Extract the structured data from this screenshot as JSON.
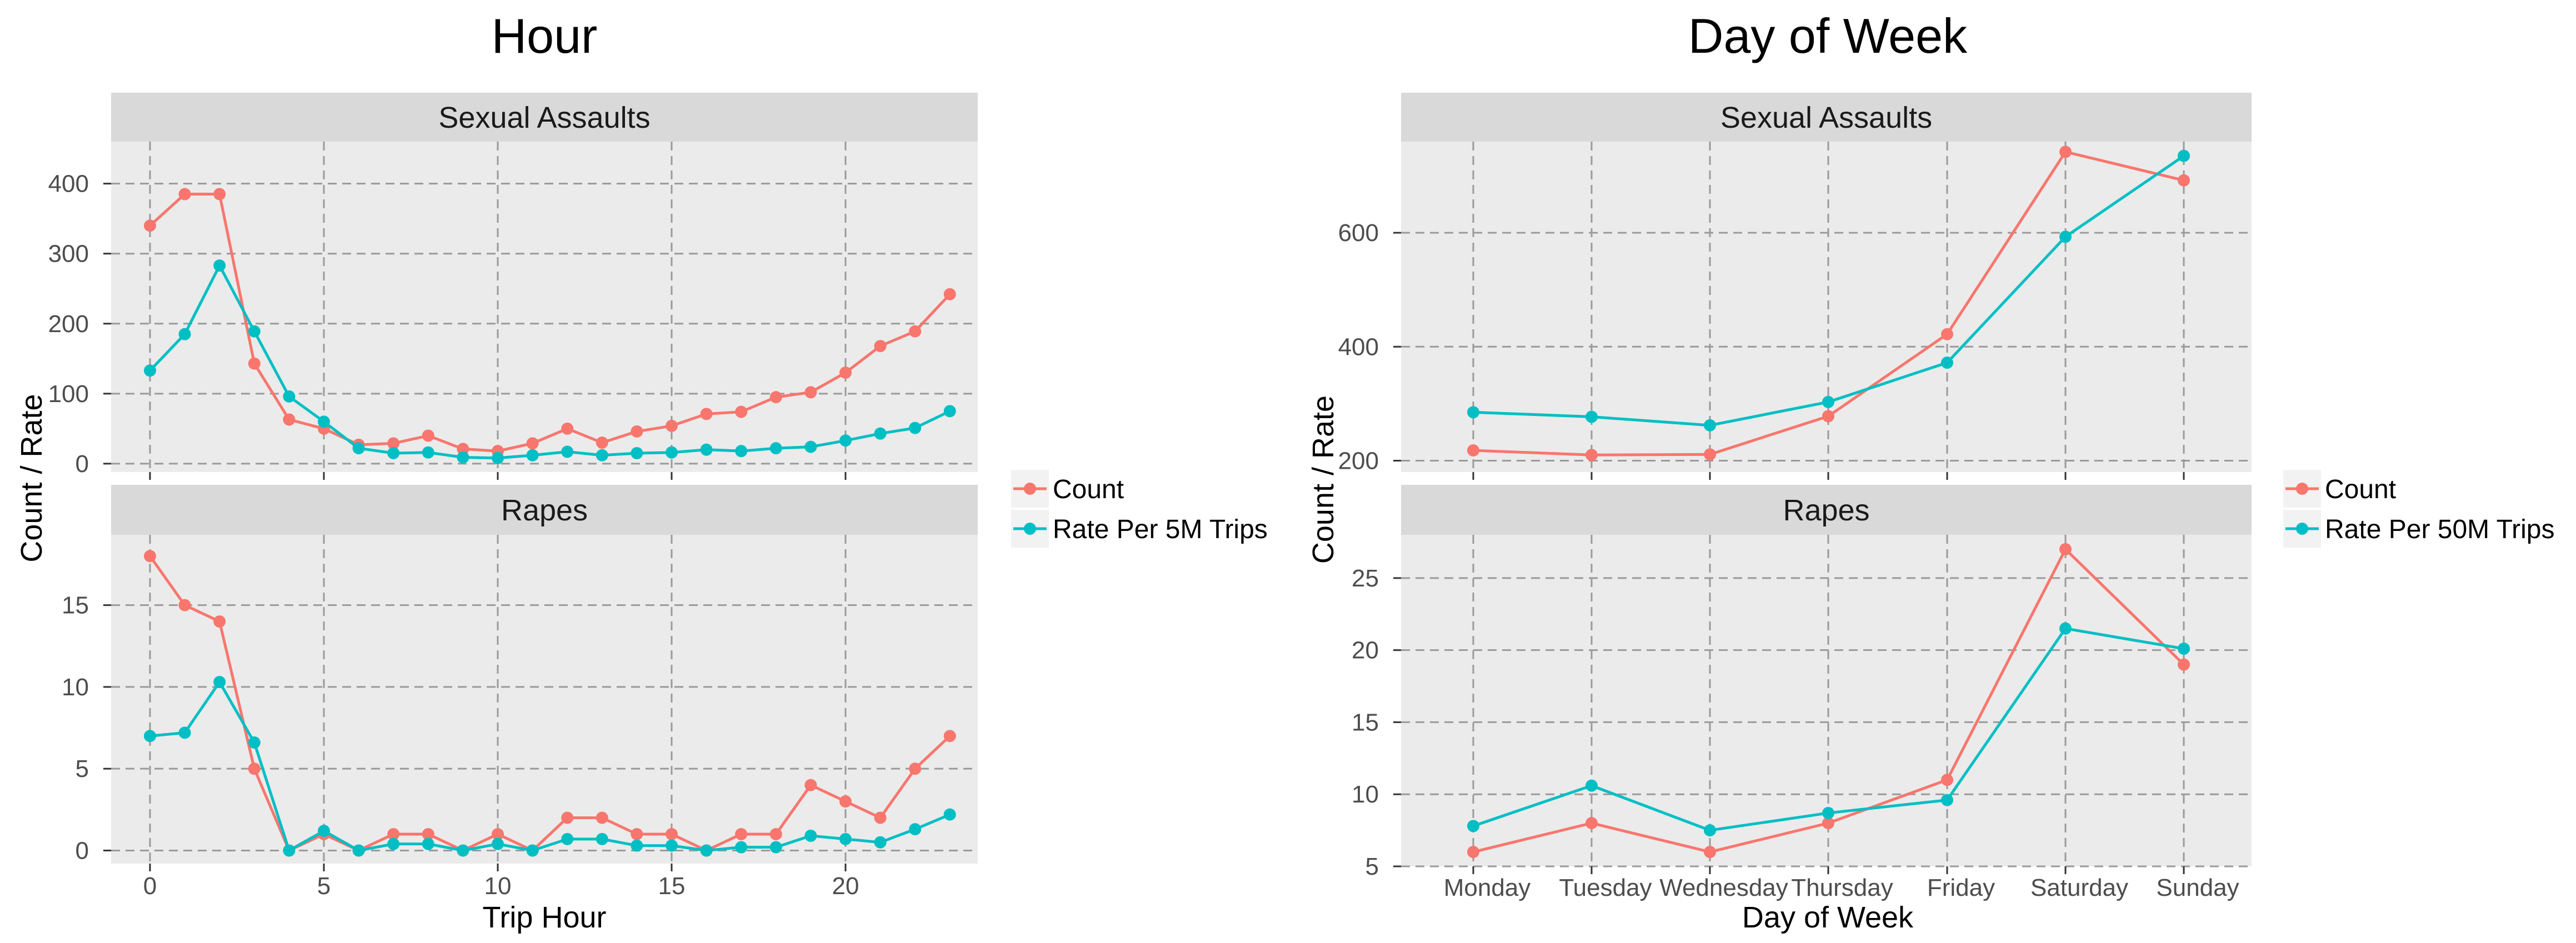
{
  "colors": {
    "count": "#F8766D",
    "rate": "#00BFC4",
    "panel_bg": "#EBEBEB",
    "strip_bg": "#D9D9D9",
    "grid_major": "#9a9a9a",
    "grid_minor": "#ffffff"
  },
  "chart_data": [
    {
      "type": "line",
      "title": "Hour",
      "xlabel": "Trip Hour",
      "ylabel": "Count / Rate",
      "x_ticks": [
        "0",
        "5",
        "10",
        "15",
        "20"
      ],
      "legend": [
        "Count",
        "Rate Per 5M Trips"
      ],
      "x": [
        0,
        1,
        2,
        3,
        4,
        5,
        6,
        7,
        8,
        9,
        10,
        11,
        12,
        13,
        14,
        15,
        16,
        17,
        18,
        19,
        20,
        21,
        22,
        23
      ],
      "panels": [
        {
          "title": "Sexual Assaults",
          "ylim": [
            -12,
            460
          ],
          "y_ticks": [
            "0",
            "100",
            "200",
            "300",
            "400"
          ],
          "series": [
            {
              "name": "Count",
              "values": [
                340,
                385,
                385,
                143,
                63,
                50,
                27,
                29,
                40,
                21,
                18,
                29,
                50,
                30,
                46,
                54,
                71,
                74,
                95,
                102,
                130,
                168,
                189,
                242
              ]
            },
            {
              "name": "Rate Per 5M Trips",
              "values": [
                133,
                185,
                283,
                189,
                96,
                60,
                22,
                15,
                16,
                9,
                8,
                12,
                17,
                12,
                15,
                16,
                20,
                18,
                22,
                24,
                33,
                43,
                51,
                75
              ]
            }
          ]
        },
        {
          "title": "Rapes",
          "ylim": [
            -0.8,
            19.3
          ],
          "y_ticks": [
            "0",
            "5",
            "10",
            "15"
          ],
          "series": [
            {
              "name": "Count",
              "values": [
                18,
                15,
                14,
                5,
                0,
                1,
                0,
                1,
                1,
                0,
                1,
                0,
                2,
                2,
                1,
                1,
                0,
                1,
                1,
                4,
                3,
                2,
                5,
                7
              ]
            },
            {
              "name": "Rate Per 5M Trips",
              "values": [
                7,
                7.2,
                10.3,
                6.6,
                0,
                1.2,
                0,
                0.4,
                0.4,
                0,
                0.4,
                0,
                0.7,
                0.7,
                0.3,
                0.3,
                0,
                0.2,
                0.2,
                0.9,
                0.7,
                0.5,
                1.3,
                2.2
              ]
            }
          ]
        }
      ]
    },
    {
      "type": "line",
      "title": "Day of Week",
      "xlabel": "Day of Week",
      "ylabel": "Count / Rate",
      "categories": [
        "Monday",
        "Tuesday",
        "Wednesday",
        "Thursday",
        "Friday",
        "Saturday",
        "Sunday"
      ],
      "legend": [
        "Count",
        "Rate Per 50M Trips"
      ],
      "panels": [
        {
          "title": "Sexual Assaults",
          "ylim": [
            180,
            760
          ],
          "y_ticks": [
            "200",
            "400",
            "600"
          ],
          "series": [
            {
              "name": "Count",
              "values": [
                218,
                210,
                211,
                278,
                422,
                742,
                692
              ]
            },
            {
              "name": "Rate Per 50M Trips",
              "values": [
                285,
                277,
                262,
                303,
                372,
                593,
                735
              ]
            }
          ]
        },
        {
          "title": "Rapes",
          "ylim": [
            5,
            28
          ],
          "y_ticks": [
            "5",
            "10",
            "15",
            "20",
            "25"
          ],
          "series": [
            {
              "name": "Count",
              "values": [
                6,
                8,
                6,
                8,
                11,
                27,
                19
              ]
            },
            {
              "name": "Rate Per 50M Trips",
              "values": [
                7.8,
                10.6,
                7.5,
                8.7,
                9.6,
                21.5,
                20.1
              ]
            }
          ]
        }
      ]
    }
  ]
}
